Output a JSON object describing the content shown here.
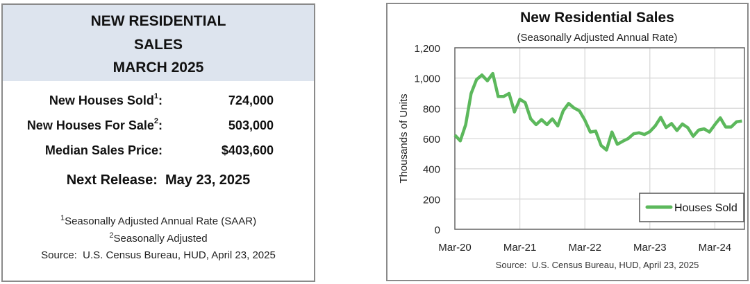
{
  "summary": {
    "title_lines": [
      "NEW RESIDENTIAL",
      "SALES",
      "MARCH 2025"
    ],
    "rows": [
      {
        "label": "New Houses Sold",
        "sup": "1",
        "value": "724,000"
      },
      {
        "label": "New Houses For Sale",
        "sup": "2",
        "value": "503,000"
      },
      {
        "label": "Median Sales Price",
        "sup": "",
        "value": "$403,600"
      }
    ],
    "next_release": "Next Release:  May 23, 2025",
    "footnotes": [
      {
        "sup": "1",
        "text": "Seasonally Adjusted Annual Rate (SAAR)"
      },
      {
        "sup": "2",
        "text": "Seasonally Adjusted"
      }
    ],
    "source": "Source:  U.S. Census Bureau, HUD, April 23, 2025",
    "header_color": "#dde4ee"
  },
  "chart_data": {
    "type": "line",
    "title": "New Residential Sales",
    "subtitle": "(Seasonally Adjusted Annual Rate)",
    "xlabel": "",
    "ylabel": "Thousands of Units",
    "source": "Source:  U.S. Census Bureau, HUD, April 23, 2025",
    "ylim": [
      0,
      1200
    ],
    "yticks": [
      "0",
      "200",
      "400",
      "600",
      "800",
      "1,000",
      "1,200"
    ],
    "xtick_labels": [
      "Mar-20",
      "Mar-21",
      "Mar-22",
      "Mar-23",
      "Mar-24"
    ],
    "grid": true,
    "legend_position": "bottom-right",
    "x": [
      "Mar-20",
      "Apr-20",
      "May-20",
      "Jun-20",
      "Jul-20",
      "Aug-20",
      "Sep-20",
      "Oct-20",
      "Nov-20",
      "Dec-20",
      "Jan-21",
      "Feb-21",
      "Mar-21",
      "Apr-21",
      "May-21",
      "Jun-21",
      "Jul-21",
      "Aug-21",
      "Sep-21",
      "Oct-21",
      "Nov-21",
      "Dec-21",
      "Jan-22",
      "Feb-22",
      "Mar-22",
      "Apr-22",
      "May-22",
      "Jun-22",
      "Jul-22",
      "Aug-22",
      "Sep-22",
      "Oct-22",
      "Nov-22",
      "Dec-22",
      "Jan-23",
      "Feb-23",
      "Mar-23",
      "Apr-23",
      "May-23",
      "Jun-23",
      "Jul-23",
      "Aug-23",
      "Sep-23",
      "Oct-23",
      "Nov-23",
      "Dec-23",
      "Jan-24",
      "Feb-24",
      "Mar-24",
      "Apr-24",
      "May-24",
      "Jun-24",
      "Jul-24",
      "Aug-24"
    ],
    "series": [
      {
        "name": "Houses Sold",
        "color": "#5cb85c",
        "values": [
          623,
          585,
          692,
          898,
          990,
          1020,
          982,
          1030,
          878,
          878,
          898,
          776,
          860,
          837,
          730,
          692,
          725,
          692,
          730,
          684,
          783,
          832,
          802,
          783,
          722,
          643,
          649,
          554,
          524,
          643,
          562,
          582,
          600,
          631,
          638,
          627,
          646,
          684,
          740,
          673,
          699,
          653,
          696,
          672,
          615,
          656,
          664,
          643,
          692,
          737,
          676,
          676,
          711,
          716
        ]
      }
    ]
  }
}
